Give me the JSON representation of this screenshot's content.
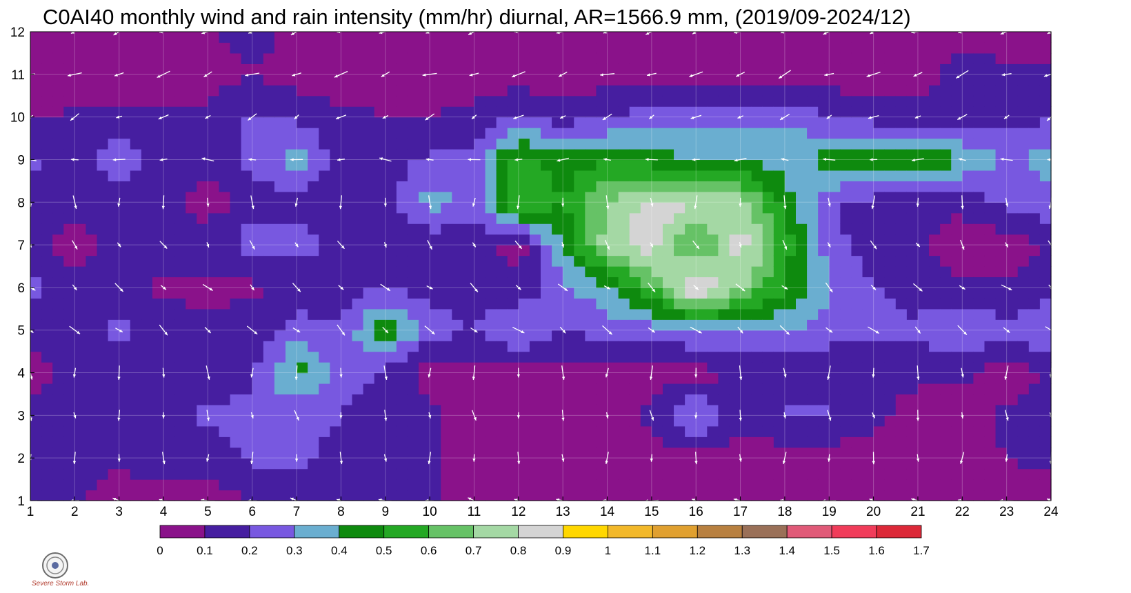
{
  "title": "C0AI40 monthly wind and rain intensity (mm/hr) diurnal, AR=1566.9 mm, (2019/09-2024/12)",
  "logo_text": "Severe Storm Lab.",
  "chart_data": {
    "type": "heatmap",
    "title": "C0AI40 monthly wind and rain intensity (mm/hr) diurnal, AR=1566.9 mm, (2019/09-2024/12)",
    "xlabel": "",
    "ylabel": "",
    "x_ticks": [
      "1",
      "2",
      "3",
      "4",
      "5",
      "6",
      "7",
      "8",
      "9",
      "10",
      "11",
      "12",
      "13",
      "14",
      "15",
      "16",
      "17",
      "18",
      "19",
      "20",
      "21",
      "22",
      "23",
      "24"
    ],
    "y_ticks": [
      "1",
      "2",
      "3",
      "4",
      "5",
      "6",
      "7",
      "8",
      "9",
      "10",
      "11",
      "12"
    ],
    "xlim": [
      1,
      24
    ],
    "ylim": [
      1,
      12
    ],
    "grid": true,
    "colorbar": {
      "levels": [
        "0",
        "0.1",
        "0.2",
        "0.3",
        "0.4",
        "0.5",
        "0.6",
        "0.7",
        "0.8",
        "0.9",
        "1",
        "1.1",
        "1.2",
        "1.3",
        "1.4",
        "1.5",
        "1.6",
        "1.7"
      ],
      "colors": [
        "#8a128a",
        "#461ea0",
        "#7858e0",
        "#6aaed0",
        "#0e8a0e",
        "#24a824",
        "#66c266",
        "#a4d8a4",
        "#d4d4d4",
        "#ffd700",
        "#f2b82a",
        "#e0a030",
        "#b88040",
        "#9a7058",
        "#e05a78",
        "#f03c5a",
        "#dc2838"
      ]
    },
    "rows": [
      {
        "month": 1,
        "values": [
          0.2,
          0.12,
          0.06,
          0.03,
          0.02,
          0.12,
          0.15,
          0.12,
          0.12,
          0.12,
          0.05,
          0.05,
          0.05,
          0.05,
          0.05,
          0.05,
          0.05,
          0.05,
          0.05,
          0.05,
          0.05,
          0.05,
          0.05,
          0.05
        ]
      },
      {
        "month": 2,
        "values": [
          0.15,
          0.1,
          0.12,
          0.15,
          0.15,
          0.22,
          0.22,
          0.18,
          0.15,
          0.12,
          0.05,
          0.05,
          0.05,
          0.05,
          0.05,
          0.05,
          0.05,
          0.05,
          0.05,
          0.05,
          0.05,
          0.05,
          0.1,
          0.12
        ]
      },
      {
        "month": 3,
        "values": [
          0.15,
          0.12,
          0.15,
          0.12,
          0.22,
          0.22,
          0.22,
          0.2,
          0.15,
          0.12,
          0.05,
          0.1,
          0.05,
          0.08,
          0.12,
          0.35,
          0.12,
          0.22,
          0.22,
          0.12,
          0.06,
          0.05,
          0.12,
          0.15
        ]
      },
      {
        "month": 4,
        "values": [
          0.05,
          0.15,
          0.12,
          0.15,
          0.15,
          0.18,
          0.45,
          0.25,
          0.18,
          0.05,
          0.05,
          0.05,
          0.05,
          0.05,
          0.05,
          0.05,
          0.12,
          0.12,
          0.12,
          0.12,
          0.12,
          0.12,
          0.05,
          0.12
        ]
      },
      {
        "month": 5,
        "values": [
          0.12,
          0.15,
          0.22,
          0.15,
          0.12,
          0.15,
          0.25,
          0.22,
          0.48,
          0.25,
          0.2,
          0.32,
          0.18,
          0.25,
          0.25,
          0.3,
          0.32,
          0.32,
          0.25,
          0.22,
          0.22,
          0.32,
          0.22,
          0.32
        ]
      },
      {
        "month": 6,
        "values": [
          0.22,
          0.15,
          0.15,
          0.08,
          0.08,
          0.08,
          0.12,
          0.15,
          0.2,
          0.15,
          0.15,
          0.12,
          0.28,
          0.38,
          0.6,
          0.95,
          0.72,
          0.5,
          0.32,
          0.22,
          0.15,
          0.12,
          0.12,
          0.15
        ]
      },
      {
        "month": 7,
        "values": [
          0.15,
          0.05,
          0.15,
          0.15,
          0.15,
          0.25,
          0.25,
          0.15,
          0.12,
          0.12,
          0.15,
          0.05,
          0.4,
          0.75,
          0.85,
          0.55,
          0.85,
          0.55,
          0.25,
          0.12,
          0.12,
          0.05,
          0.05,
          0.12
        ]
      },
      {
        "month": 8,
        "values": [
          0.15,
          0.15,
          0.15,
          0.12,
          0.05,
          0.15,
          0.15,
          0.15,
          0.15,
          0.35,
          0.25,
          0.62,
          0.5,
          0.7,
          0.85,
          0.82,
          0.75,
          0.45,
          0.22,
          0.15,
          0.12,
          0.12,
          0.22,
          0.28
        ]
      },
      {
        "month": 9,
        "values": [
          0.22,
          0.12,
          0.28,
          0.15,
          0.15,
          0.22,
          0.35,
          0.15,
          0.15,
          0.22,
          0.25,
          0.55,
          0.45,
          0.48,
          0.45,
          0.4,
          0.42,
          0.35,
          0.45,
          0.52,
          0.52,
          0.4,
          0.28,
          0.35
        ]
      },
      {
        "month": 10,
        "values": [
          0.08,
          0.12,
          0.12,
          0.12,
          0.12,
          0.22,
          0.18,
          0.12,
          0.1,
          0.1,
          0.12,
          0.2,
          0.15,
          0.2,
          0.25,
          0.25,
          0.25,
          0.28,
          0.2,
          0.15,
          0.15,
          0.15,
          0.15,
          0.2
        ]
      },
      {
        "month": 11,
        "values": [
          0.05,
          0.05,
          0.05,
          0.05,
          0.05,
          0.1,
          0.05,
          0.05,
          0.05,
          0.05,
          0.05,
          0.05,
          0.05,
          0.05,
          0.05,
          0.05,
          0.05,
          0.05,
          0.05,
          0.05,
          0.05,
          0.15,
          0.12,
          0.12
        ]
      },
      {
        "month": 12,
        "values": [
          0.05,
          0.05,
          0.05,
          0.05,
          0.08,
          0.15,
          0.05,
          0.05,
          0.05,
          0.05,
          0.08,
          0.05,
          0.05,
          0.05,
          0.05,
          0.05,
          0.05,
          0.05,
          0.05,
          0.05,
          0.05,
          0.05,
          0.05,
          0.05
        ]
      }
    ],
    "wind_vectors": [
      {
        "month": 12,
        "dir_deg": 200
      },
      {
        "month": 11,
        "dir_deg": 200
      },
      {
        "month": 10,
        "dir_deg": 210
      },
      {
        "month": 9,
        "dir_deg": 180
      },
      {
        "month": 8,
        "dir_deg": 270
      },
      {
        "month": 7,
        "dir_deg": 300
      },
      {
        "month": 6,
        "dir_deg": 320
      },
      {
        "month": 5,
        "dir_deg": 320
      },
      {
        "month": 4,
        "dir_deg": 270
      },
      {
        "month": 3,
        "dir_deg": 280
      },
      {
        "month": 2,
        "dir_deg": 270
      },
      {
        "month": 1,
        "dir_deg": 170
      }
    ]
  }
}
